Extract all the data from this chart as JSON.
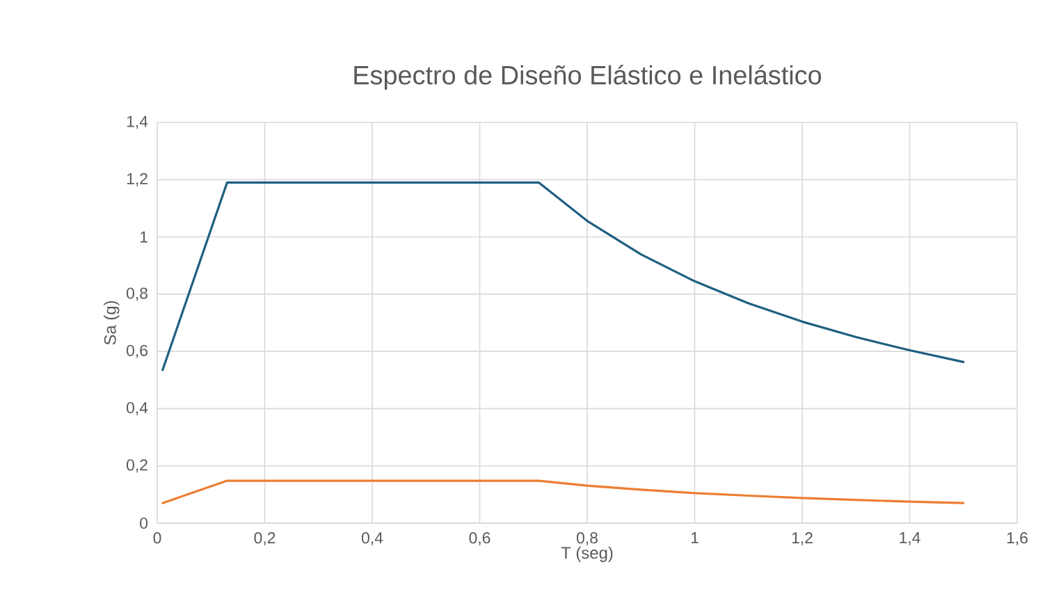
{
  "chart_data": {
    "type": "line",
    "title": "Espectro de Diseño Elástico e Inelástico",
    "xlabel": "T (seg)",
    "ylabel": "Sa (g)",
    "x": [
      0.01,
      0.13,
      0.71,
      0.8,
      0.9,
      1.0,
      1.1,
      1.2,
      1.3,
      1.4,
      1.5
    ],
    "series": [
      {
        "color": "#1f5f80",
        "values": [
          0.535,
          1.19,
          1.19,
          1.056,
          0.939,
          0.845,
          0.768,
          0.704,
          0.65,
          0.604,
          0.563
        ]
      },
      {
        "color": "#ed7d31",
        "values": [
          0.07,
          0.148,
          0.148,
          0.131,
          0.117,
          0.105,
          0.096,
          0.088,
          0.081,
          0.075,
          0.07
        ]
      }
    ],
    "xlim": [
      0,
      1.6
    ],
    "ylim": [
      0,
      1.4
    ],
    "xticks": [
      0,
      {
        "value": 0.2,
        "label": "0,2"
      },
      {
        "value": 0.4,
        "label": "0,4"
      },
      {
        "value": 0.6,
        "label": "0,6"
      },
      {
        "value": 0.8,
        "label": "0,8"
      },
      1,
      {
        "value": 1.2,
        "label": "1,2"
      },
      {
        "value": 1.4,
        "label": "1,4"
      },
      {
        "value": 1.6,
        "label": "1,6"
      }
    ],
    "yticks": [
      0,
      {
        "value": 0.2,
        "label": "0,2"
      },
      {
        "value": 0.4,
        "label": "0,4"
      },
      {
        "value": 0.6,
        "label": "0,6"
      },
      {
        "value": 0.8,
        "label": "0,8"
      },
      1,
      {
        "value": 1.2,
        "label": "1,2"
      },
      {
        "value": 1.4,
        "label": "1,4"
      }
    ],
    "grid": true,
    "line_style": "solid"
  }
}
